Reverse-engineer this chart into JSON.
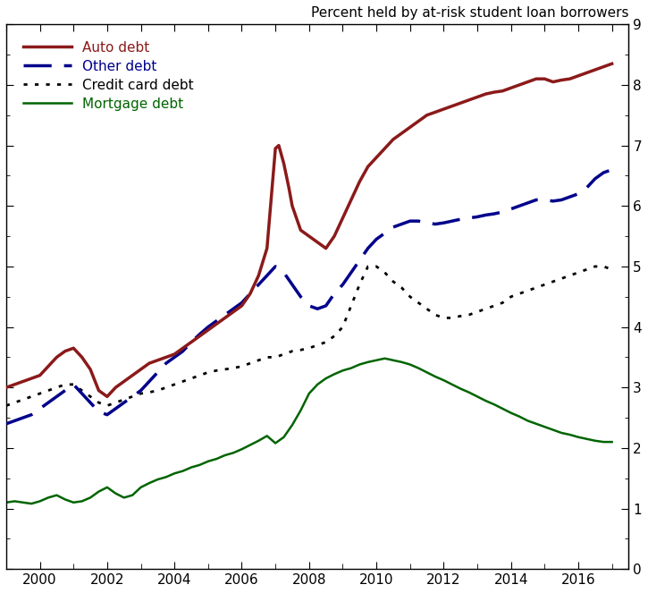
{
  "title": "Percent held by at-risk student loan borrowers",
  "ylim": [
    0,
    9
  ],
  "xlim": [
    1999.0,
    2017.5
  ],
  "yticks": [
    0,
    1,
    2,
    3,
    4,
    5,
    6,
    7,
    8,
    9
  ],
  "xtick_labels": [
    "2000",
    "2002",
    "2004",
    "2006",
    "2008",
    "2010",
    "2012",
    "2014",
    "2016"
  ],
  "xtick_positions": [
    2000,
    2002,
    2004,
    2006,
    2008,
    2010,
    2012,
    2014,
    2016
  ],
  "minor_xticks": [
    1999,
    2000,
    2001,
    2002,
    2003,
    2004,
    2005,
    2006,
    2007,
    2008,
    2009,
    2010,
    2011,
    2012,
    2013,
    2014,
    2015,
    2016,
    2017
  ],
  "series": {
    "auto": {
      "color": "#8B1A1A",
      "linewidth": 2.5,
      "label": "Auto debt"
    },
    "other": {
      "color": "#00008B",
      "linewidth": 2.5,
      "label": "Other debt"
    },
    "credit_card": {
      "color": "#000000",
      "linewidth": 2.0,
      "label": "Credit card debt"
    },
    "mortgage": {
      "color": "#006400",
      "linewidth": 1.8,
      "label": "Mortgage debt"
    }
  },
  "auto_x": [
    1999.0,
    1999.25,
    1999.5,
    1999.75,
    2000.0,
    2000.25,
    2000.5,
    2000.75,
    2001.0,
    2001.25,
    2001.5,
    2001.75,
    2002.0,
    2002.25,
    2002.5,
    2002.75,
    2003.0,
    2003.25,
    2003.5,
    2003.75,
    2004.0,
    2004.25,
    2004.5,
    2004.75,
    2005.0,
    2005.25,
    2005.5,
    2005.75,
    2006.0,
    2006.25,
    2006.5,
    2006.75,
    2007.0,
    2007.1,
    2007.25,
    2007.4,
    2007.5,
    2007.75,
    2008.0,
    2008.25,
    2008.5,
    2008.75,
    2009.0,
    2009.25,
    2009.5,
    2009.75,
    2010.0,
    2010.25,
    2010.5,
    2010.75,
    2011.0,
    2011.25,
    2011.5,
    2011.75,
    2012.0,
    2012.25,
    2012.5,
    2012.75,
    2013.0,
    2013.25,
    2013.5,
    2013.75,
    2014.0,
    2014.25,
    2014.5,
    2014.75,
    2015.0,
    2015.25,
    2015.5,
    2015.75,
    2016.0,
    2016.25,
    2016.5,
    2016.75,
    2017.0
  ],
  "auto_y": [
    3.0,
    3.05,
    3.1,
    3.15,
    3.2,
    3.35,
    3.5,
    3.6,
    3.65,
    3.5,
    3.3,
    2.95,
    2.85,
    3.0,
    3.1,
    3.2,
    3.3,
    3.4,
    3.45,
    3.5,
    3.55,
    3.65,
    3.75,
    3.85,
    3.95,
    4.05,
    4.15,
    4.25,
    4.35,
    4.55,
    4.85,
    5.3,
    6.95,
    7.0,
    6.7,
    6.3,
    6.0,
    5.6,
    5.5,
    5.4,
    5.3,
    5.5,
    5.8,
    6.1,
    6.4,
    6.65,
    6.8,
    6.95,
    7.1,
    7.2,
    7.3,
    7.4,
    7.5,
    7.55,
    7.6,
    7.65,
    7.7,
    7.75,
    7.8,
    7.85,
    7.88,
    7.9,
    7.95,
    8.0,
    8.05,
    8.1,
    8.1,
    8.05,
    8.08,
    8.1,
    8.15,
    8.2,
    8.25,
    8.3,
    8.35
  ],
  "other_x": [
    1999.0,
    1999.25,
    1999.5,
    1999.75,
    2000.0,
    2000.25,
    2000.5,
    2000.75,
    2001.0,
    2001.25,
    2001.5,
    2001.75,
    2002.0,
    2002.25,
    2002.5,
    2002.75,
    2003.0,
    2003.25,
    2003.5,
    2003.75,
    2004.0,
    2004.25,
    2004.5,
    2004.75,
    2005.0,
    2005.25,
    2005.5,
    2005.75,
    2006.0,
    2006.25,
    2006.5,
    2006.75,
    2007.0,
    2007.25,
    2007.5,
    2007.75,
    2008.0,
    2008.25,
    2008.5,
    2008.75,
    2009.0,
    2009.25,
    2009.5,
    2009.75,
    2010.0,
    2010.25,
    2010.5,
    2010.75,
    2011.0,
    2011.25,
    2011.5,
    2011.75,
    2012.0,
    2012.25,
    2012.5,
    2012.75,
    2013.0,
    2013.25,
    2013.5,
    2013.75,
    2014.0,
    2014.25,
    2014.5,
    2014.75,
    2015.0,
    2015.25,
    2015.5,
    2015.75,
    2016.0,
    2016.25,
    2016.5,
    2016.75,
    2017.0
  ],
  "other_y": [
    2.4,
    2.45,
    2.5,
    2.55,
    2.65,
    2.75,
    2.85,
    2.95,
    3.05,
    2.9,
    2.75,
    2.6,
    2.55,
    2.65,
    2.75,
    2.85,
    2.95,
    3.1,
    3.25,
    3.4,
    3.5,
    3.6,
    3.75,
    3.88,
    4.0,
    4.1,
    4.2,
    4.3,
    4.4,
    4.55,
    4.7,
    4.85,
    5.0,
    4.9,
    4.7,
    4.5,
    4.35,
    4.3,
    4.35,
    4.55,
    4.7,
    4.9,
    5.1,
    5.3,
    5.45,
    5.55,
    5.65,
    5.7,
    5.75,
    5.75,
    5.72,
    5.7,
    5.72,
    5.75,
    5.78,
    5.8,
    5.82,
    5.85,
    5.87,
    5.9,
    5.95,
    6.0,
    6.05,
    6.1,
    6.1,
    6.08,
    6.1,
    6.15,
    6.2,
    6.3,
    6.45,
    6.55,
    6.6
  ],
  "cc_x": [
    1999.0,
    1999.25,
    1999.5,
    1999.75,
    2000.0,
    2000.25,
    2000.5,
    2000.75,
    2001.0,
    2001.25,
    2001.5,
    2001.75,
    2002.0,
    2002.25,
    2002.5,
    2002.75,
    2003.0,
    2003.25,
    2003.5,
    2003.75,
    2004.0,
    2004.25,
    2004.5,
    2004.75,
    2005.0,
    2005.25,
    2005.5,
    2005.75,
    2006.0,
    2006.25,
    2006.5,
    2006.75,
    2007.0,
    2007.25,
    2007.5,
    2007.75,
    2008.0,
    2008.25,
    2008.5,
    2008.75,
    2009.0,
    2009.25,
    2009.5,
    2009.75,
    2010.0,
    2010.25,
    2010.5,
    2010.75,
    2011.0,
    2011.25,
    2011.5,
    2011.75,
    2012.0,
    2012.25,
    2012.5,
    2012.75,
    2013.0,
    2013.25,
    2013.5,
    2013.75,
    2014.0,
    2014.25,
    2014.5,
    2014.75,
    2015.0,
    2015.25,
    2015.5,
    2015.75,
    2016.0,
    2016.25,
    2016.5,
    2016.75,
    2017.0
  ],
  "cc_y": [
    2.7,
    2.75,
    2.8,
    2.85,
    2.9,
    2.95,
    3.0,
    3.05,
    3.05,
    2.95,
    2.85,
    2.75,
    2.7,
    2.75,
    2.8,
    2.85,
    2.9,
    2.92,
    2.95,
    3.0,
    3.05,
    3.1,
    3.15,
    3.2,
    3.25,
    3.28,
    3.3,
    3.32,
    3.35,
    3.4,
    3.45,
    3.5,
    3.5,
    3.55,
    3.6,
    3.62,
    3.65,
    3.7,
    3.75,
    3.85,
    4.0,
    4.35,
    4.7,
    5.0,
    5.0,
    4.9,
    4.75,
    4.65,
    4.5,
    4.4,
    4.3,
    4.2,
    4.15,
    4.15,
    4.18,
    4.2,
    4.25,
    4.3,
    4.35,
    4.4,
    4.5,
    4.55,
    4.6,
    4.65,
    4.7,
    4.75,
    4.8,
    4.85,
    4.9,
    4.95,
    5.0,
    5.0,
    4.95
  ],
  "mort_x": [
    1999.0,
    1999.25,
    1999.5,
    1999.75,
    2000.0,
    2000.25,
    2000.5,
    2000.75,
    2001.0,
    2001.25,
    2001.5,
    2001.75,
    2002.0,
    2002.25,
    2002.5,
    2002.75,
    2003.0,
    2003.25,
    2003.5,
    2003.75,
    2004.0,
    2004.25,
    2004.5,
    2004.75,
    2005.0,
    2005.25,
    2005.5,
    2005.75,
    2006.0,
    2006.25,
    2006.5,
    2006.75,
    2007.0,
    2007.25,
    2007.5,
    2007.75,
    2008.0,
    2008.25,
    2008.5,
    2008.75,
    2009.0,
    2009.25,
    2009.5,
    2009.75,
    2010.0,
    2010.25,
    2010.5,
    2010.75,
    2011.0,
    2011.25,
    2011.5,
    2011.75,
    2012.0,
    2012.25,
    2012.5,
    2012.75,
    2013.0,
    2013.25,
    2013.5,
    2013.75,
    2014.0,
    2014.25,
    2014.5,
    2014.75,
    2015.0,
    2015.25,
    2015.5,
    2015.75,
    2016.0,
    2016.25,
    2016.5,
    2016.75,
    2017.0
  ],
  "mort_y": [
    1.1,
    1.12,
    1.1,
    1.08,
    1.12,
    1.18,
    1.22,
    1.15,
    1.1,
    1.12,
    1.18,
    1.28,
    1.35,
    1.25,
    1.18,
    1.22,
    1.35,
    1.42,
    1.48,
    1.52,
    1.58,
    1.62,
    1.68,
    1.72,
    1.78,
    1.82,
    1.88,
    1.92,
    1.98,
    2.05,
    2.12,
    2.2,
    2.08,
    2.18,
    2.38,
    2.62,
    2.9,
    3.05,
    3.15,
    3.22,
    3.28,
    3.32,
    3.38,
    3.42,
    3.45,
    3.48,
    3.45,
    3.42,
    3.38,
    3.32,
    3.25,
    3.18,
    3.12,
    3.05,
    2.98,
    2.92,
    2.85,
    2.78,
    2.72,
    2.65,
    2.58,
    2.52,
    2.45,
    2.4,
    2.35,
    2.3,
    2.25,
    2.22,
    2.18,
    2.15,
    2.12,
    2.1,
    2.1
  ],
  "background_color": "#ffffff",
  "tick_fontsize": 11,
  "title_fontsize": 11,
  "legend_fontsize": 11
}
